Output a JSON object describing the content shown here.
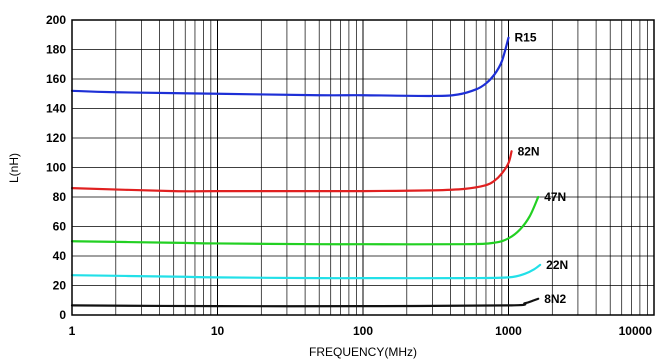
{
  "chart_data": {
    "type": "line",
    "xlabel": "FREQUENCY(MHz)",
    "ylabel": "L(nH)",
    "x_scale": "log",
    "xlim": [
      1,
      10000
    ],
    "ylim": [
      0,
      200
    ],
    "x_ticks": [
      1,
      10,
      100,
      1000,
      10000
    ],
    "x_tick_labels": [
      "1",
      "10",
      "100",
      "1000",
      "10000"
    ],
    "y_ticks": [
      0,
      20,
      40,
      60,
      80,
      100,
      120,
      140,
      160,
      180,
      200
    ],
    "y_tick_labels": [
      "0",
      "20",
      "40",
      "60",
      "80",
      "100",
      "120",
      "140",
      "160",
      "180",
      "200"
    ],
    "grid": true,
    "series": [
      {
        "name": "R15",
        "color": "#1d2fd6",
        "points": [
          [
            1,
            152
          ],
          [
            2,
            151
          ],
          [
            10,
            150
          ],
          [
            50,
            149
          ],
          [
            100,
            149
          ],
          [
            300,
            148.5
          ],
          [
            450,
            149.5
          ],
          [
            600,
            153
          ],
          [
            700,
            157
          ],
          [
            800,
            163
          ],
          [
            900,
            172
          ],
          [
            1000,
            188
          ]
        ]
      },
      {
        "name": "82N",
        "color": "#e02020",
        "points": [
          [
            1,
            86
          ],
          [
            5,
            84
          ],
          [
            10,
            84
          ],
          [
            50,
            84
          ],
          [
            100,
            84
          ],
          [
            300,
            84.5
          ],
          [
            500,
            85.5
          ],
          [
            700,
            88
          ],
          [
            800,
            91
          ],
          [
            900,
            96
          ],
          [
            1000,
            103
          ],
          [
            1050,
            111
          ]
        ]
      },
      {
        "name": "47N",
        "color": "#22d022",
        "points": [
          [
            1,
            50
          ],
          [
            5,
            49
          ],
          [
            10,
            48.5
          ],
          [
            50,
            48
          ],
          [
            100,
            48
          ],
          [
            500,
            48
          ],
          [
            800,
            49
          ],
          [
            1000,
            52
          ],
          [
            1200,
            58
          ],
          [
            1400,
            67
          ],
          [
            1600,
            80
          ]
        ]
      },
      {
        "name": "22N",
        "color": "#22e0e8",
        "points": [
          [
            1,
            27
          ],
          [
            5,
            26
          ],
          [
            10,
            25.5
          ],
          [
            50,
            25
          ],
          [
            100,
            25
          ],
          [
            500,
            25
          ],
          [
            1000,
            25.5
          ],
          [
            1300,
            28
          ],
          [
            1500,
            31
          ],
          [
            1650,
            34
          ]
        ]
      },
      {
        "name": "8N2",
        "color": "#111111",
        "points": [
          [
            1,
            6.5
          ],
          [
            10,
            6
          ],
          [
            100,
            6
          ],
          [
            1000,
            6.5
          ],
          [
            1300,
            8
          ],
          [
            1500,
            10
          ],
          [
            1600,
            11
          ]
        ]
      }
    ]
  }
}
